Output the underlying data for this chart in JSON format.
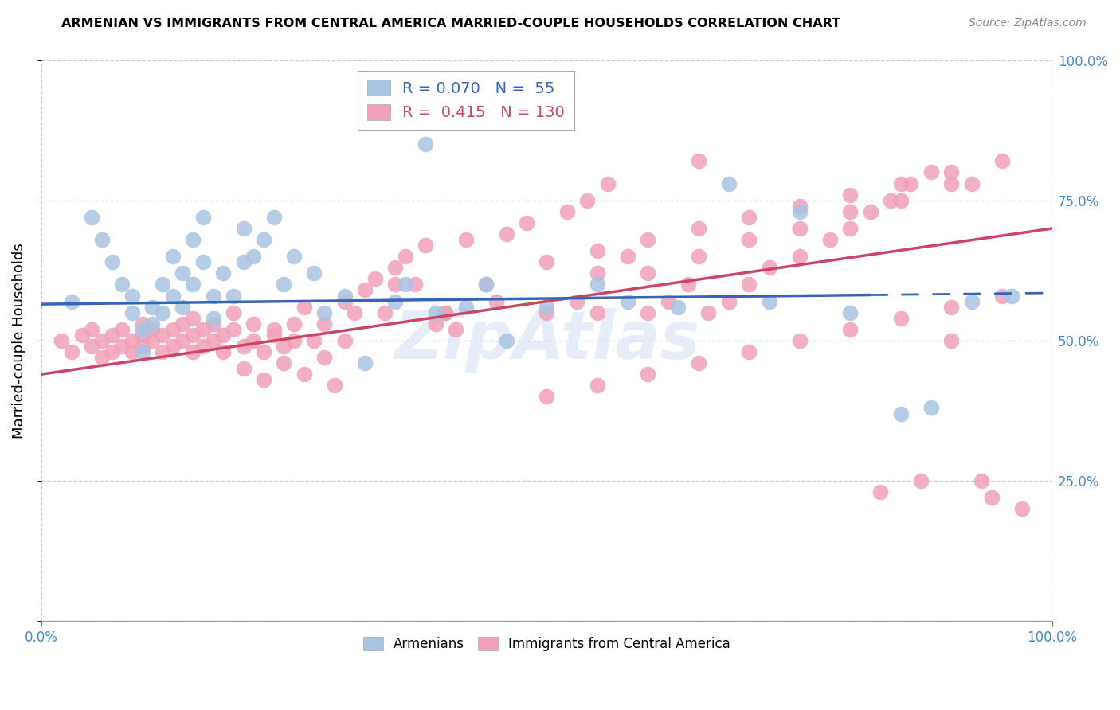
{
  "title": "ARMENIAN VS IMMIGRANTS FROM CENTRAL AMERICA MARRIED-COUPLE HOUSEHOLDS CORRELATION CHART",
  "source": "Source: ZipAtlas.com",
  "ylabel": "Married-couple Households",
  "blue_R": 0.07,
  "blue_N": 55,
  "pink_R": 0.415,
  "pink_N": 130,
  "blue_color": "#a8c4e0",
  "pink_color": "#f0a0b8",
  "blue_trend_color": "#3366bb",
  "pink_trend_color": "#cc4466",
  "blue_trend_solid_end": 0.82,
  "blue_line_start_y": 0.565,
  "blue_line_end_y": 0.585,
  "pink_line_start_y": 0.44,
  "pink_line_end_y": 0.7,
  "xlim": [
    0.0,
    1.0
  ],
  "ylim": [
    0.0,
    1.0
  ],
  "yticks": [
    0.0,
    0.25,
    0.5,
    0.75,
    1.0
  ],
  "xticks": [
    0.0,
    1.0
  ],
  "grid_color": "#cccccc",
  "watermark": "ZipAtlas",
  "watermark_color": "#aec6e8",
  "bg_color": "#ffffff",
  "blue_scatter_x": [
    0.03,
    0.05,
    0.06,
    0.07,
    0.08,
    0.09,
    0.09,
    0.1,
    0.1,
    0.11,
    0.11,
    0.12,
    0.12,
    0.13,
    0.13,
    0.14,
    0.14,
    0.15,
    0.15,
    0.16,
    0.16,
    0.17,
    0.17,
    0.18,
    0.19,
    0.2,
    0.2,
    0.21,
    0.22,
    0.23,
    0.24,
    0.25,
    0.27,
    0.28,
    0.3,
    0.32,
    0.35,
    0.36,
    0.38,
    0.39,
    0.42,
    0.44,
    0.46,
    0.5,
    0.55,
    0.58,
    0.63,
    0.68,
    0.72,
    0.75,
    0.8,
    0.85,
    0.88,
    0.92,
    0.96
  ],
  "blue_scatter_y": [
    0.57,
    0.72,
    0.68,
    0.64,
    0.6,
    0.58,
    0.55,
    0.52,
    0.48,
    0.56,
    0.53,
    0.6,
    0.55,
    0.65,
    0.58,
    0.62,
    0.56,
    0.68,
    0.6,
    0.72,
    0.64,
    0.58,
    0.54,
    0.62,
    0.58,
    0.7,
    0.64,
    0.65,
    0.68,
    0.72,
    0.6,
    0.65,
    0.62,
    0.55,
    0.58,
    0.46,
    0.57,
    0.6,
    0.85,
    0.55,
    0.56,
    0.6,
    0.5,
    0.56,
    0.6,
    0.57,
    0.56,
    0.78,
    0.57,
    0.73,
    0.55,
    0.37,
    0.38,
    0.57,
    0.58
  ],
  "pink_scatter_x": [
    0.02,
    0.03,
    0.04,
    0.05,
    0.05,
    0.06,
    0.06,
    0.07,
    0.07,
    0.08,
    0.08,
    0.09,
    0.09,
    0.1,
    0.1,
    0.1,
    0.11,
    0.11,
    0.12,
    0.12,
    0.13,
    0.13,
    0.14,
    0.14,
    0.15,
    0.15,
    0.15,
    0.16,
    0.16,
    0.17,
    0.17,
    0.18,
    0.18,
    0.19,
    0.19,
    0.2,
    0.2,
    0.21,
    0.21,
    0.22,
    0.22,
    0.23,
    0.23,
    0.24,
    0.24,
    0.25,
    0.25,
    0.26,
    0.26,
    0.27,
    0.28,
    0.28,
    0.29,
    0.3,
    0.3,
    0.31,
    0.32,
    0.33,
    0.34,
    0.35,
    0.36,
    0.37,
    0.38,
    0.39,
    0.4,
    0.41,
    0.42,
    0.44,
    0.46,
    0.48,
    0.5,
    0.52,
    0.53,
    0.54,
    0.55,
    0.56,
    0.58,
    0.6,
    0.62,
    0.64,
    0.65,
    0.66,
    0.68,
    0.7,
    0.72,
    0.75,
    0.78,
    0.8,
    0.82,
    0.84,
    0.86,
    0.88,
    0.9,
    0.92,
    0.93,
    0.95,
    0.55,
    0.6,
    0.65,
    0.7,
    0.75,
    0.8,
    0.85,
    0.9,
    0.4,
    0.45,
    0.35,
    0.5,
    0.55,
    0.6,
    0.65,
    0.7,
    0.75,
    0.8,
    0.85,
    0.9,
    0.95,
    0.5,
    0.55,
    0.6,
    0.65,
    0.7,
    0.75,
    0.8,
    0.85,
    0.9,
    0.94,
    0.97,
    0.83,
    0.87
  ],
  "pink_scatter_y": [
    0.5,
    0.48,
    0.51,
    0.49,
    0.52,
    0.5,
    0.47,
    0.48,
    0.51,
    0.52,
    0.49,
    0.5,
    0.48,
    0.51,
    0.49,
    0.53,
    0.5,
    0.52,
    0.48,
    0.51,
    0.52,
    0.49,
    0.5,
    0.53,
    0.48,
    0.51,
    0.54,
    0.52,
    0.49,
    0.5,
    0.53,
    0.48,
    0.51,
    0.52,
    0.55,
    0.49,
    0.45,
    0.53,
    0.5,
    0.48,
    0.43,
    0.51,
    0.52,
    0.49,
    0.46,
    0.5,
    0.53,
    0.56,
    0.44,
    0.5,
    0.53,
    0.47,
    0.42,
    0.57,
    0.5,
    0.55,
    0.59,
    0.61,
    0.55,
    0.63,
    0.65,
    0.6,
    0.67,
    0.53,
    0.55,
    0.52,
    0.68,
    0.6,
    0.69,
    0.71,
    0.55,
    0.73,
    0.57,
    0.75,
    0.62,
    0.78,
    0.65,
    0.55,
    0.57,
    0.6,
    0.82,
    0.55,
    0.57,
    0.6,
    0.63,
    0.65,
    0.68,
    0.7,
    0.73,
    0.75,
    0.78,
    0.8,
    0.5,
    0.78,
    0.25,
    0.82,
    0.55,
    0.62,
    0.65,
    0.68,
    0.7,
    0.73,
    0.75,
    0.78,
    0.55,
    0.57,
    0.6,
    0.4,
    0.42,
    0.44,
    0.46,
    0.48,
    0.5,
    0.52,
    0.54,
    0.56,
    0.58,
    0.64,
    0.66,
    0.68,
    0.7,
    0.72,
    0.74,
    0.76,
    0.78,
    0.8,
    0.22,
    0.2,
    0.23,
    0.25
  ]
}
